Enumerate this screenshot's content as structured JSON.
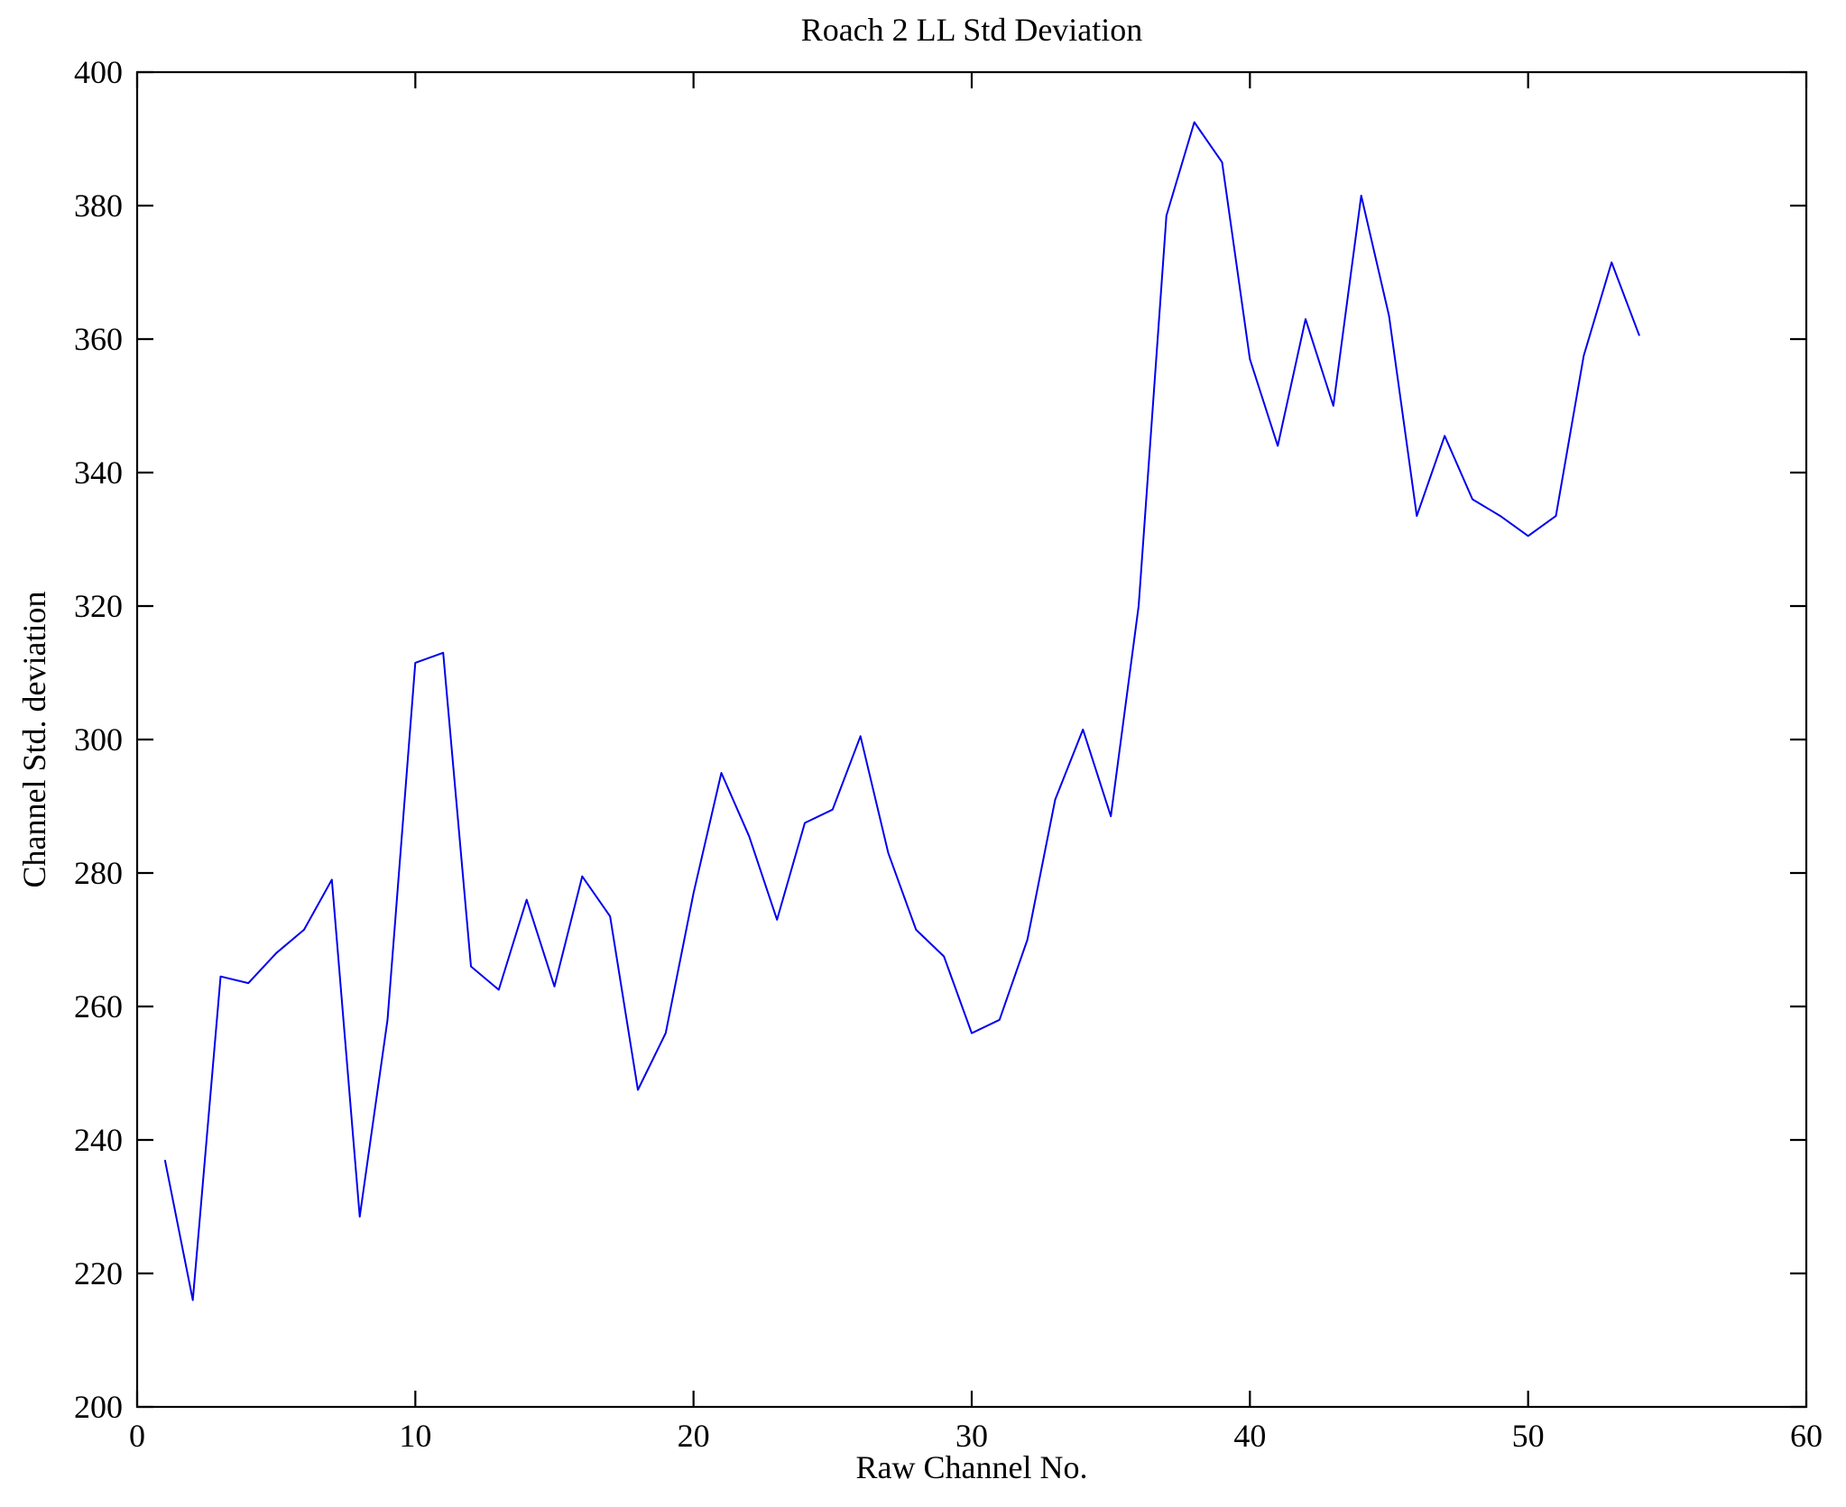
{
  "chart_data": {
    "type": "line",
    "title": "Roach 2 LL Std Deviation",
    "xlabel": "Raw Channel No.",
    "ylabel": "Channel Std. deviation",
    "xlim": [
      0,
      60
    ],
    "ylim": [
      200,
      400
    ],
    "xticks": [
      0,
      10,
      20,
      30,
      40,
      50,
      60
    ],
    "yticks": [
      200,
      220,
      240,
      260,
      280,
      300,
      320,
      340,
      360,
      380,
      400
    ],
    "grid": false,
    "legend": "none",
    "line_color": "#0000ee",
    "axis_color": "#000000",
    "x": [
      1,
      2,
      3,
      4,
      5,
      6,
      7,
      8,
      9,
      10,
      11,
      12,
      13,
      14,
      15,
      16,
      17,
      18,
      19,
      20,
      21,
      22,
      23,
      24,
      25,
      26,
      27,
      28,
      29,
      30,
      31,
      32,
      33,
      34,
      35,
      36,
      37,
      38,
      39,
      40,
      41,
      42,
      43,
      44,
      45,
      46,
      47,
      48,
      49,
      50,
      51,
      52,
      53,
      54
    ],
    "y": [
      237,
      216,
      264.5,
      263.5,
      268,
      271.5,
      279,
      228.5,
      258,
      311.5,
      313,
      266,
      262.5,
      276,
      263,
      279.5,
      273.5,
      247.5,
      256,
      277,
      295,
      285.5,
      273,
      287.5,
      289.5,
      300.5,
      283,
      271.5,
      267.5,
      256,
      258,
      270,
      291,
      301.5,
      288.5,
      320,
      378.5,
      392.5,
      386.5,
      357,
      344,
      363,
      350,
      381.5,
      363.5,
      333.5,
      345.5,
      336,
      333.5,
      330.5,
      333.5,
      357.5,
      371.5,
      360.5
    ]
  }
}
